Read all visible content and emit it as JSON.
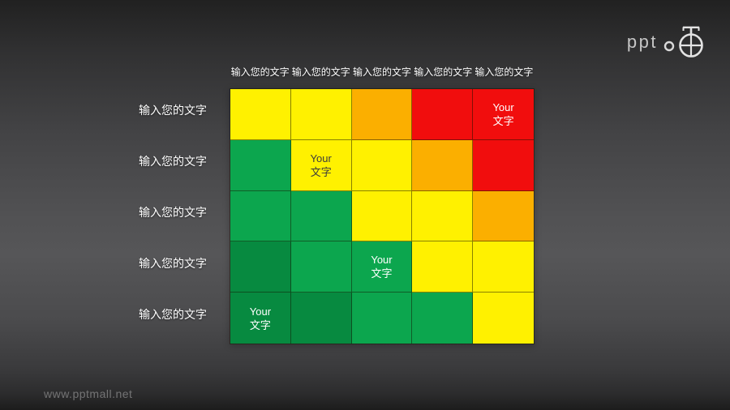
{
  "logo": {
    "text": "ppt",
    "icon": "pocket-watch-icon"
  },
  "footer": {
    "watermark": "www.pptmall.net"
  },
  "matrix": {
    "col_headers": [
      "输入您的文字",
      "输入您的文字",
      "输入您的文字",
      "输入您的文字",
      "输入您的文字"
    ],
    "row_headers": [
      "输入您的文字",
      "输入您的文字",
      "输入您的文字",
      "输入您的文字",
      "输入您的文字"
    ],
    "cell_label": {
      "line1": "Your",
      "line2": "文字"
    },
    "level_colors": {
      "1": "#078A40",
      "2": "#0CA64E",
      "3": "#FFF100",
      "4": "#FBAF00",
      "5": "#F10D0D"
    },
    "grid_levels": [
      [
        3,
        3,
        4,
        5,
        5
      ],
      [
        2,
        3,
        3,
        4,
        5
      ],
      [
        2,
        2,
        3,
        3,
        4
      ],
      [
        1,
        2,
        2,
        3,
        3
      ],
      [
        1,
        1,
        2,
        2,
        3
      ]
    ],
    "labeled_cells": [
      {
        "row": 0,
        "col": 4,
        "text_color": "#FFFFFF"
      },
      {
        "row": 1,
        "col": 1,
        "text_color": "#3C3C3C"
      },
      {
        "row": 3,
        "col": 2,
        "text_color": "#FFFFFF"
      },
      {
        "row": 4,
        "col": 0,
        "text_color": "#FFFFFF"
      }
    ]
  }
}
